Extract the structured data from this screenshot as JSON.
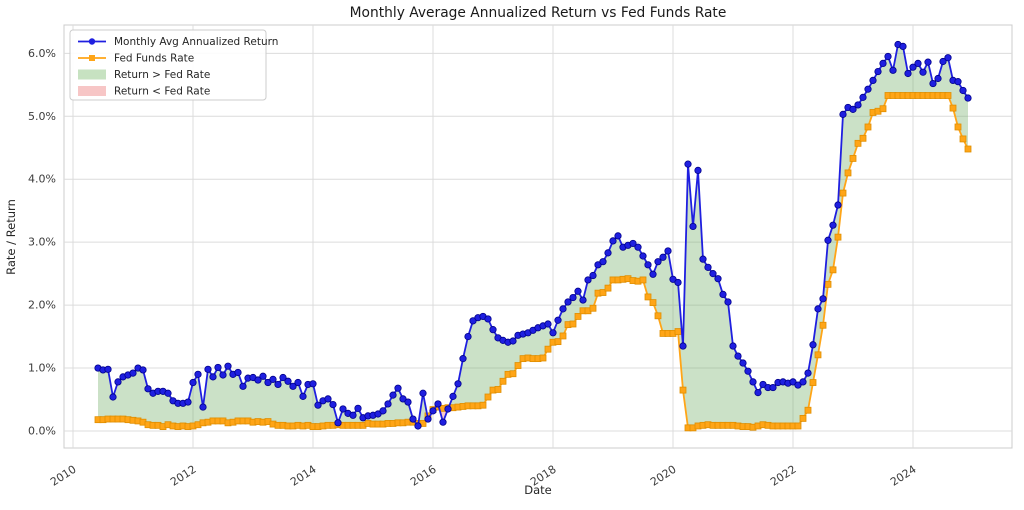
{
  "title": "Monthly Average Annualized Return vs Fed Funds Rate",
  "axes": {
    "xlabel": "Date",
    "ylabel": "Rate / Return"
  },
  "legend": {
    "items": [
      {
        "label": "Monthly Avg Annualized Return",
        "type": "line",
        "color": "#1f1fe0",
        "marker": "circle"
      },
      {
        "label": "Fed Funds Rate",
        "type": "line",
        "color": "#ffa517",
        "marker": "square"
      },
      {
        "label": "Return > Fed Rate",
        "type": "patch",
        "color": "#c7e2c1"
      },
      {
        "label": "Return < Fed Rate",
        "type": "patch",
        "color": "#f7c6c6"
      }
    ]
  },
  "colors": {
    "return_line": "#1f1fe0",
    "return_marker_edge": "#00008b",
    "fed_line": "#ffa517",
    "fed_marker_edge": "#e08e00",
    "fill_above": "rgba(118,176,108,0.38)",
    "fill_below": "rgba(242,106,106,0.35)",
    "grid": "#dcdcdc",
    "frame": "#cccccc"
  },
  "chart_data": {
    "type": "line",
    "title": "Monthly Average Annualized Return vs Fed Funds Rate",
    "xlabel": "Date",
    "ylabel": "Rate / Return",
    "grid": true,
    "legend_position": "upper left",
    "x_start": "2010-06",
    "x_end": "2024-12",
    "x_frequency": "monthly",
    "x_tick_labels": [
      "2010",
      "2012",
      "2014",
      "2016",
      "2018",
      "2020",
      "2022",
      "2024"
    ],
    "y_tick_labels": [
      "0.0%",
      "1.0%",
      "2.0%",
      "3.0%",
      "4.0%",
      "5.0%",
      "6.0%"
    ],
    "xlim_years": [
      2009.85,
      2025.65
    ],
    "ylim_percent": [
      -0.27,
      6.45
    ],
    "series": [
      {
        "name": "Monthly Avg Annualized Return",
        "marker": "circle",
        "color": "#1f1fe0",
        "values_percent": [
          1.0,
          0.97,
          0.98,
          0.54,
          0.78,
          0.86,
          0.89,
          0.92,
          1.0,
          0.97,
          0.67,
          0.6,
          0.63,
          0.63,
          0.6,
          0.48,
          0.44,
          0.44,
          0.46,
          0.77,
          0.9,
          0.38,
          0.98,
          0.86,
          1.01,
          0.89,
          1.03,
          0.9,
          0.93,
          0.71,
          0.84,
          0.85,
          0.81,
          0.87,
          0.77,
          0.82,
          0.74,
          0.85,
          0.79,
          0.71,
          0.77,
          0.55,
          0.74,
          0.75,
          0.41,
          0.48,
          0.51,
          0.42,
          0.13,
          0.35,
          0.28,
          0.25,
          0.36,
          0.21,
          0.24,
          0.25,
          0.27,
          0.32,
          0.43,
          0.57,
          0.68,
          0.51,
          0.46,
          0.19,
          0.08,
          0.6,
          0.19,
          0.32,
          0.43,
          0.14,
          0.35,
          0.55,
          0.75,
          1.15,
          1.5,
          1.75,
          1.8,
          1.82,
          1.78,
          1.61,
          1.48,
          1.44,
          1.41,
          1.43,
          1.52,
          1.54,
          1.56,
          1.6,
          1.64,
          1.67,
          1.7,
          1.56,
          1.76,
          1.94,
          2.05,
          2.12,
          2.22,
          2.08,
          2.4,
          2.47,
          2.64,
          2.69,
          2.83,
          3.02,
          3.1,
          2.92,
          2.95,
          2.98,
          2.92,
          2.78,
          2.64,
          2.49,
          2.69,
          2.76,
          2.86,
          2.41,
          2.36,
          1.35,
          4.24,
          3.25,
          4.14,
          2.73,
          2.6,
          2.5,
          2.42,
          2.17,
          2.05,
          1.35,
          1.19,
          1.08,
          0.95,
          0.78,
          0.61,
          0.74,
          0.69,
          0.69,
          0.77,
          0.78,
          0.76,
          0.78,
          0.73,
          0.78,
          0.92,
          1.37,
          1.94,
          2.1,
          3.03,
          3.27,
          3.59,
          5.03,
          5.14,
          5.11,
          5.18,
          5.3,
          5.43,
          5.57,
          5.71,
          5.84,
          5.95,
          5.73,
          6.14,
          6.11,
          5.68,
          5.78,
          5.84,
          5.7,
          5.86,
          5.52,
          5.6,
          5.87,
          5.93,
          5.57,
          5.55,
          5.41,
          5.29
        ]
      },
      {
        "name": "Fed Funds Rate",
        "marker": "square",
        "color": "#ffa517",
        "values_percent": [
          0.18,
          0.18,
          0.19,
          0.19,
          0.19,
          0.19,
          0.18,
          0.17,
          0.16,
          0.14,
          0.1,
          0.09,
          0.09,
          0.07,
          0.1,
          0.08,
          0.07,
          0.08,
          0.07,
          0.08,
          0.1,
          0.13,
          0.14,
          0.16,
          0.16,
          0.16,
          0.13,
          0.14,
          0.16,
          0.16,
          0.16,
          0.14,
          0.15,
          0.14,
          0.15,
          0.11,
          0.09,
          0.09,
          0.08,
          0.08,
          0.09,
          0.08,
          0.09,
          0.07,
          0.07,
          0.08,
          0.09,
          0.09,
          0.1,
          0.09,
          0.09,
          0.09,
          0.09,
          0.09,
          0.12,
          0.11,
          0.11,
          0.11,
          0.12,
          0.12,
          0.13,
          0.13,
          0.14,
          0.14,
          0.12,
          0.12,
          0.24,
          0.34,
          0.38,
          0.36,
          0.37,
          0.37,
          0.38,
          0.39,
          0.4,
          0.4,
          0.4,
          0.41,
          0.54,
          0.65,
          0.66,
          0.79,
          0.9,
          0.91,
          1.04,
          1.15,
          1.16,
          1.15,
          1.15,
          1.16,
          1.3,
          1.41,
          1.42,
          1.51,
          1.69,
          1.7,
          1.82,
          1.91,
          1.91,
          1.95,
          2.19,
          2.2,
          2.27,
          2.4,
          2.4,
          2.41,
          2.42,
          2.39,
          2.38,
          2.4,
          2.13,
          2.04,
          1.83,
          1.55,
          1.55,
          1.55,
          1.58,
          0.65,
          0.05,
          0.05,
          0.08,
          0.09,
          0.1,
          0.09,
          0.09,
          0.09,
          0.09,
          0.09,
          0.08,
          0.07,
          0.07,
          0.06,
          0.08,
          0.1,
          0.09,
          0.08,
          0.08,
          0.08,
          0.08,
          0.08,
          0.08,
          0.2,
          0.33,
          0.77,
          1.21,
          1.68,
          2.33,
          2.56,
          3.08,
          3.78,
          4.1,
          4.33,
          4.57,
          4.65,
          4.83,
          5.06,
          5.08,
          5.12,
          5.33,
          5.33,
          5.33,
          5.33,
          5.33,
          5.33,
          5.33,
          5.33,
          5.33,
          5.33,
          5.33,
          5.33,
          5.33,
          5.13,
          4.83,
          4.64,
          4.48
        ]
      }
    ],
    "fills": [
      {
        "name": "Return > Fed Rate",
        "condition": "return_above_fed",
        "color": "rgba(118,176,108,0.38)"
      },
      {
        "name": "Return < Fed Rate",
        "condition": "return_below_fed",
        "color": "rgba(242,106,106,0.35)"
      }
    ]
  }
}
